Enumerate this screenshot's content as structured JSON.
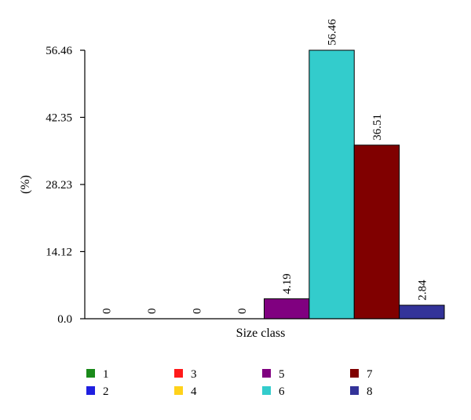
{
  "chart_data": {
    "type": "bar",
    "title": "",
    "xlabel": "Size class",
    "ylabel": "(%)",
    "ylim": [
      0,
      56.46
    ],
    "yticks": [
      "0.0",
      "14.12",
      "28.23",
      "42.35",
      "56.46"
    ],
    "grid": false,
    "legend_position": "bottom",
    "series": [
      {
        "name": "1",
        "value": 0,
        "label": "0",
        "color": "#1a8a1a"
      },
      {
        "name": "2",
        "value": 0,
        "label": "0",
        "color": "#1f1fe0"
      },
      {
        "name": "3",
        "value": 0,
        "label": "0",
        "color": "#ff1a1a"
      },
      {
        "name": "4",
        "value": 0,
        "label": "0",
        "color": "#ffd21a"
      },
      {
        "name": "5",
        "value": 4.19,
        "label": "4.19",
        "color": "#800080"
      },
      {
        "name": "6",
        "value": 56.46,
        "label": "56.46",
        "color": "#33cccc"
      },
      {
        "name": "7",
        "value": 36.51,
        "label": "36.51",
        "color": "#800000"
      },
      {
        "name": "8",
        "value": 2.84,
        "label": "2.84",
        "color": "#333399"
      }
    ]
  }
}
